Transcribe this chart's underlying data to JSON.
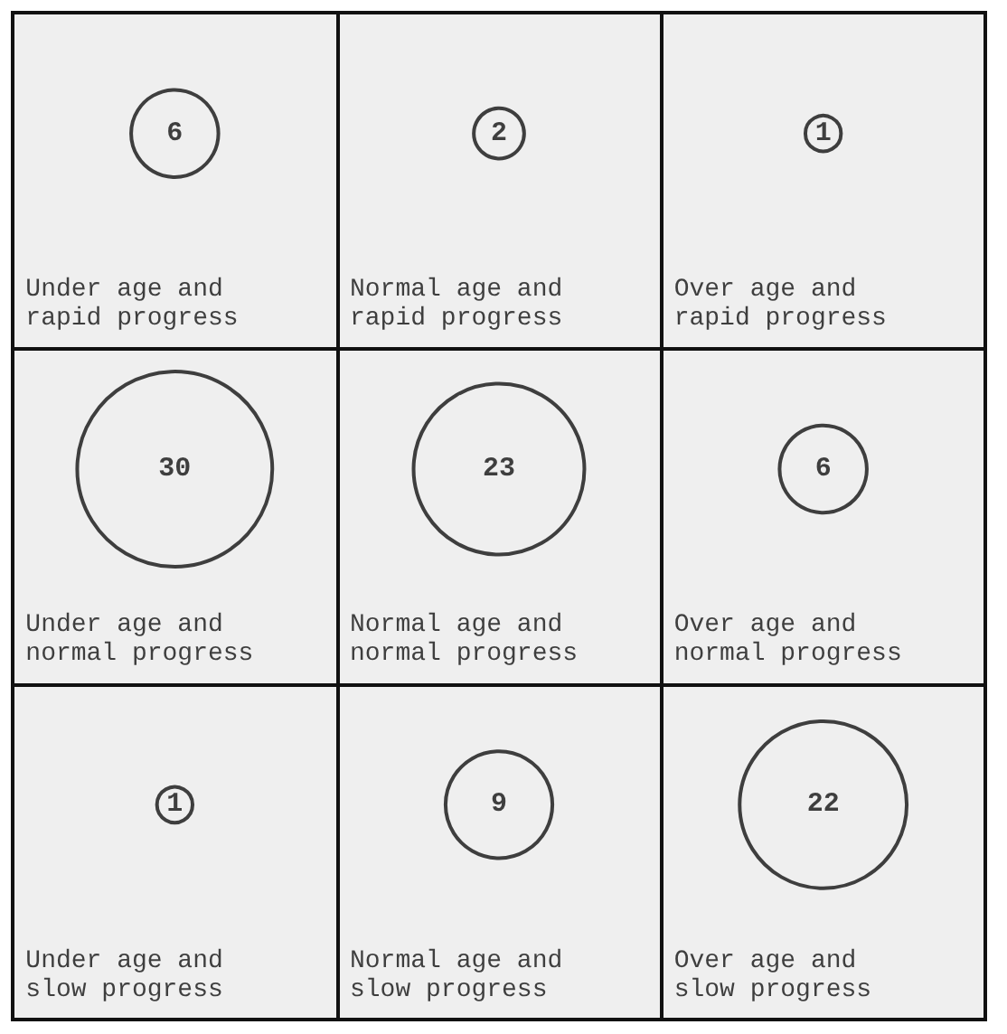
{
  "chart_data": {
    "type": "other",
    "categories": [
      "Under age and rapid progress",
      "Normal age and rapid progress",
      "Over age and rapid progress",
      "Under age and normal progress",
      "Normal age and normal progress",
      "Over age and normal progress",
      "Under age and slow progress",
      "Normal age and slow progress",
      "Over age and slow progress"
    ],
    "values": [
      6,
      2,
      1,
      30,
      23,
      6,
      1,
      9,
      22
    ],
    "data_labels": true
  }
}
